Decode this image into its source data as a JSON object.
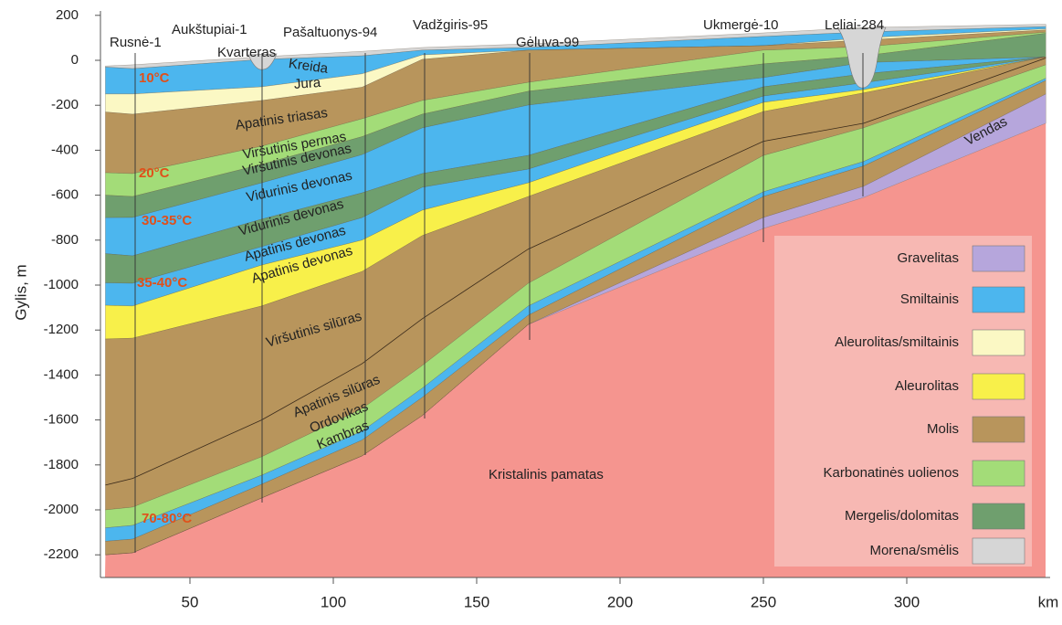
{
  "axes": {
    "y_label": "Gylis, m",
    "yticks": [
      200,
      0,
      -200,
      -400,
      -600,
      -800,
      -1000,
      -1200,
      -1400,
      -1600,
      -1800,
      -2000,
      -2200
    ],
    "xticks": [
      50,
      100,
      150,
      200,
      250,
      300
    ],
    "x_unit": "km"
  },
  "wells": [
    "Rusnė-1",
    "Aukštupiai-1",
    "Pašaltuonys-94",
    "Vadžgiris-95",
    "Gėluva-99",
    "Ukmergė-10",
    "Leliai-284"
  ],
  "layer_labels": [
    "Kvarteras",
    "Kreida",
    "Jura",
    "Apatinis triasas",
    "Viršutinis permas",
    "Viršutinis devonas",
    "Vidurinis devonas",
    "Vidurinis devonas",
    "Apatinis devonas",
    "Apatinis devonas",
    "Viršutinis silūras",
    "Apatinis silūras",
    "Ordovikas",
    "Kambras",
    "Kristalinis pamatas",
    "Vendas"
  ],
  "temperatures": [
    "10°C",
    "20°C",
    "30-35°C",
    "35-40°C",
    "70-80°C"
  ],
  "legend": [
    {
      "label": "Gravelitas",
      "color": "#b6a6dc"
    },
    {
      "label": "Smiltainis",
      "color": "#4cb6ee"
    },
    {
      "label": "Aleurolitas/smiltainis",
      "color": "#fbf8c4"
    },
    {
      "label": "Aleurolitas",
      "color": "#f8f04a"
    },
    {
      "label": "Molis",
      "color": "#b8955c"
    },
    {
      "label": "Karbonatinės uolienos",
      "color": "#a3dc78"
    },
    {
      "label": "Mergelis/dolomitas",
      "color": "#6f9f6e"
    },
    {
      "label": "Morena/smėlis",
      "color": "#d6d6d6"
    }
  ]
}
